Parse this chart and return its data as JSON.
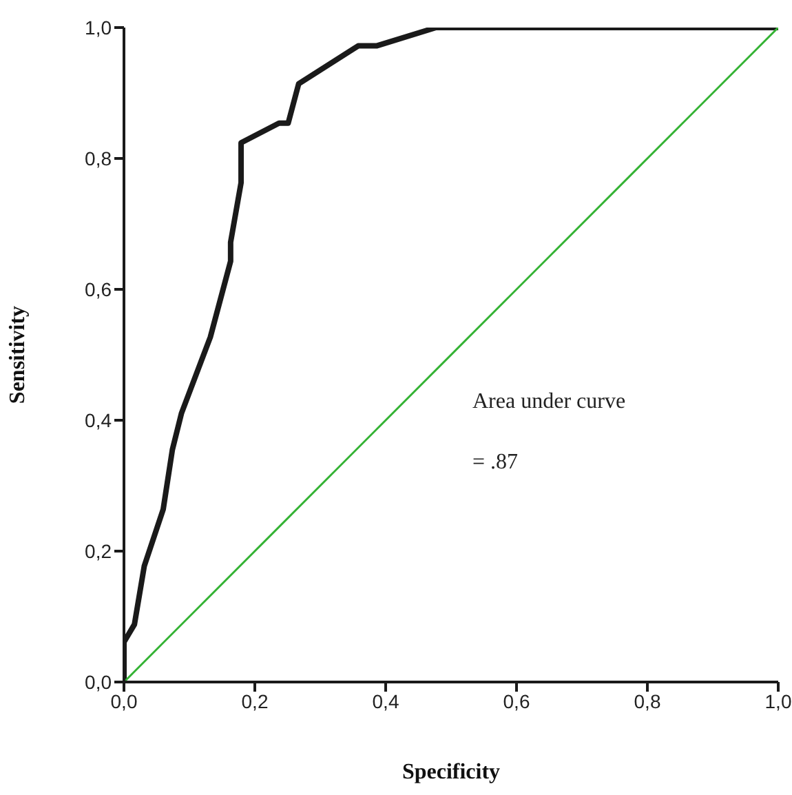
{
  "chart_data": {
    "type": "line",
    "xlabel": "Specificity",
    "ylabel": "Sensitivity",
    "series": [
      {
        "color": "#1a1a1a",
        "x": [
          0,
          0,
          0.016,
          0.031,
          0.06,
          0.074,
          0.088,
          0.132,
          0.163,
          0.163,
          0.179,
          0.179,
          0.237,
          0.251,
          0.267,
          0.358,
          0.386,
          0.477,
          1
        ],
        "values": [
          0,
          0.061,
          0.088,
          0.177,
          0.264,
          0.355,
          0.411,
          0.527,
          0.643,
          0.672,
          0.763,
          0.824,
          0.854,
          0.854,
          0.914,
          0.972,
          0.972,
          1,
          1
        ]
      },
      {
        "color": "#33b233",
        "x": [
          0,
          1
        ],
        "values": [
          0,
          1
        ]
      }
    ],
    "xlim": [
      0,
      1
    ],
    "ylim": [
      0,
      1
    ],
    "xticks": [
      {
        "value": 0,
        "label": "0,0"
      },
      {
        "value": 0.2,
        "label": "0,2"
      },
      {
        "value": 0.4,
        "label": "0,4"
      },
      {
        "value": 0.6,
        "label": "0,6"
      },
      {
        "value": 0.8,
        "label": "0,8"
      },
      {
        "value": 1,
        "label": "1,0"
      }
    ],
    "yticks": [
      {
        "value": 0,
        "label": "0,0"
      },
      {
        "value": 0.2,
        "label": "0,2"
      },
      {
        "value": 0.4,
        "label": "0,4"
      },
      {
        "value": 0.6,
        "label": "0,6"
      },
      {
        "value": 0.8,
        "label": "0,8"
      },
      {
        "value": 1,
        "label": "1,0"
      }
    ],
    "annotations": [
      "Area under curve",
      "= .87"
    ],
    "grid": false,
    "marker": "none"
  }
}
